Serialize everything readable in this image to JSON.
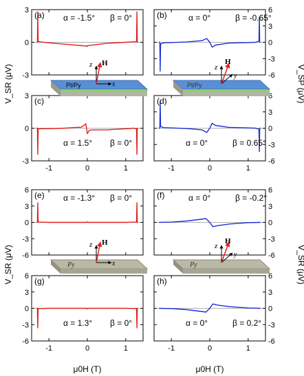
{
  "figure": {
    "ylabel_left_top": "V_SR (μV)",
    "ylabel_right_top": "V_SP (μV)",
    "ylabel_left_bottom": "V_SR (μV)",
    "ylabel_right_bottom": "V_SR (μV)",
    "xlabel": "μ0H (T)",
    "inset_film_label_top": "Pt/Py",
    "inset_film_label_bottom": "Py"
  },
  "colors": {
    "red": "#e0201b",
    "blue": "#1d2fd6",
    "zero": "#b0b0b0"
  },
  "chart_data": [
    {
      "type": "line",
      "id": "a",
      "panel_label": "(a)",
      "alpha": "α = -1.5°",
      "beta": "β = 0°",
      "color": "red",
      "ylim": [
        -3,
        3
      ],
      "yticks": [
        -3,
        0,
        3
      ],
      "xlim": [
        -1.45,
        1.45
      ],
      "xticks": [
        -1.0,
        0.0,
        1.0
      ],
      "series": [
        {
          "x": [
            -1.32,
            -1.3,
            -1.29,
            -1.28,
            -1.26,
            -1.0,
            -0.5,
            -0.02,
            -0.005,
            0.005,
            0.02,
            0.5,
            1.0,
            1.26,
            1.28,
            1.29,
            1.3,
            1.32
          ],
          "y": [
            0,
            0,
            2.8,
            0.08,
            0.05,
            -0.05,
            -0.2,
            -0.35,
            -0.4,
            -0.3,
            -0.3,
            -0.1,
            0.0,
            0.05,
            0.08,
            2.8,
            0,
            0
          ]
        }
      ]
    },
    {
      "type": "line",
      "id": "b",
      "panel_label": "(b)",
      "alpha": "α = 0°",
      "beta": "β = -0.65°",
      "color": "blue",
      "ylim": [
        -6,
        6
      ],
      "yticks": [
        -6,
        -3,
        0,
        3,
        6
      ],
      "xlim": [
        -1.45,
        1.45
      ],
      "xticks": [
        -1.0,
        0.0,
        1.0
      ],
      "series": [
        {
          "x": [
            -1.32,
            -1.3,
            -1.29,
            -1.28,
            -1.2,
            -0.6,
            -0.2,
            -0.08,
            0.0,
            0.06,
            0.15,
            0.5,
            1.0,
            1.2,
            1.28,
            1.29,
            1.3,
            1.32
          ],
          "y": [
            0,
            0,
            -5.3,
            -0.3,
            -0.1,
            0.05,
            0.3,
            0.7,
            0.0,
            -0.9,
            -0.5,
            -0.15,
            -0.05,
            0.0,
            0.2,
            4.6,
            0,
            0
          ]
        }
      ]
    },
    {
      "type": "line",
      "id": "c",
      "panel_label": "(c)",
      "alpha": "α = 1.5°",
      "beta": "β = 0°",
      "color": "red",
      "ylim": [
        -3,
        3
      ],
      "yticks": [
        -3,
        0,
        3
      ],
      "xlim": [
        -1.45,
        1.45
      ],
      "xticks": [
        -1.0,
        0.0,
        1.0
      ],
      "series": [
        {
          "x": [
            -1.32,
            -1.3,
            -1.29,
            -1.28,
            -1.2,
            -0.6,
            -0.15,
            -0.04,
            0.0,
            0.05,
            0.12,
            0.5,
            1.0,
            1.2,
            1.28,
            1.29,
            1.3,
            1.32
          ],
          "y": [
            0,
            0,
            -2.4,
            -0.05,
            -0.05,
            0.0,
            0.1,
            0.4,
            -0.5,
            -0.2,
            -0.15,
            -0.15,
            -0.05,
            0.0,
            -0.05,
            -2.4,
            0,
            0
          ]
        }
      ]
    },
    {
      "type": "line",
      "id": "d",
      "panel_label": "(d)",
      "alpha": "α = 0°",
      "beta": "β = 0.65°",
      "color": "blue",
      "ylim": [
        -6,
        6
      ],
      "yticks": [
        -6,
        -3,
        0,
        3,
        6
      ],
      "xlim": [
        -1.45,
        1.45
      ],
      "xticks": [
        -1.0,
        0.0,
        1.0
      ],
      "series": [
        {
          "x": [
            -1.32,
            -1.3,
            -1.29,
            -1.28,
            -1.2,
            -0.6,
            -0.2,
            -0.08,
            0.0,
            0.06,
            0.15,
            0.5,
            1.0,
            1.2,
            1.28,
            1.29,
            1.3,
            1.32
          ],
          "y": [
            0,
            0,
            5.0,
            0.3,
            0.1,
            -0.05,
            -0.3,
            -0.8,
            0.0,
            0.9,
            0.5,
            0.15,
            0.05,
            0.0,
            -0.2,
            -4.3,
            0,
            0
          ]
        }
      ]
    },
    {
      "type": "line",
      "id": "e",
      "panel_label": "(e)",
      "alpha": "α = -1.3°",
      "beta": "β = 0°",
      "color": "red",
      "ylim": [
        -6,
        6
      ],
      "yticks": [
        -6,
        -3,
        0,
        3,
        6
      ],
      "xlim": [
        -1.45,
        1.45
      ],
      "xticks": [
        -1.0,
        0.0,
        1.0
      ],
      "series": [
        {
          "x": [
            -1.32,
            -1.3,
            -1.29,
            -1.28,
            -1.0,
            -0.02,
            0.0,
            0.02,
            1.0,
            1.28,
            1.29,
            1.3,
            1.32
          ],
          "y": [
            0,
            0,
            3.6,
            0.05,
            0.0,
            0.0,
            0.1,
            0.0,
            0.0,
            0.05,
            3.6,
            0,
            0
          ]
        }
      ]
    },
    {
      "type": "line",
      "id": "f",
      "panel_label": "(f)",
      "alpha": "α = 0°",
      "beta": "β = -0.2°",
      "color": "blue",
      "ylim": [
        -6,
        6
      ],
      "yticks": [
        -6,
        -3,
        0,
        3,
        6
      ],
      "xlim": [
        -1.45,
        1.45
      ],
      "xticks": [
        -1.0,
        0.0,
        1.0
      ],
      "series": [
        {
          "x": [
            -1.32,
            -1.0,
            -0.6,
            -0.3,
            -0.1,
            0.0,
            0.08,
            0.2,
            0.5,
            1.0,
            1.32
          ],
          "y": [
            0.0,
            0.05,
            0.25,
            0.5,
            0.7,
            0.0,
            -0.8,
            -0.6,
            -0.3,
            -0.05,
            0.0
          ]
        }
      ]
    },
    {
      "type": "line",
      "id": "g",
      "panel_label": "(g)",
      "alpha": "α = 1.3°",
      "beta": "β = 0°",
      "color": "red",
      "ylim": [
        -6,
        6
      ],
      "yticks": [
        -6,
        -3,
        0,
        3,
        6
      ],
      "xlim": [
        -1.45,
        1.45
      ],
      "xticks": [
        -1.0,
        0.0,
        1.0
      ],
      "series": [
        {
          "x": [
            -1.32,
            -1.3,
            -1.29,
            -1.28,
            -1.0,
            -0.02,
            0.0,
            0.02,
            1.0,
            1.28,
            1.29,
            1.3,
            1.32
          ],
          "y": [
            0,
            0,
            -3.6,
            -0.05,
            0.0,
            0.0,
            -0.1,
            0.0,
            0.0,
            -0.05,
            -3.6,
            0,
            0
          ]
        }
      ]
    },
    {
      "type": "line",
      "id": "h",
      "panel_label": "(h)",
      "alpha": "α = 0°",
      "beta": "β = 0.2°",
      "color": "blue",
      "ylim": [
        -6,
        6
      ],
      "yticks": [
        -6,
        -3,
        0,
        3,
        6
      ],
      "xlim": [
        -1.45,
        1.45
      ],
      "xticks": [
        -1.0,
        0.0,
        1.0
      ],
      "series": [
        {
          "x": [
            -1.32,
            -1.0,
            -0.6,
            -0.3,
            -0.1,
            0.0,
            0.08,
            0.2,
            0.5,
            1.0,
            1.32
          ],
          "y": [
            0.0,
            -0.05,
            -0.25,
            -0.5,
            -0.7,
            0.0,
            0.8,
            0.6,
            0.3,
            0.05,
            0.0
          ]
        }
      ]
    }
  ]
}
